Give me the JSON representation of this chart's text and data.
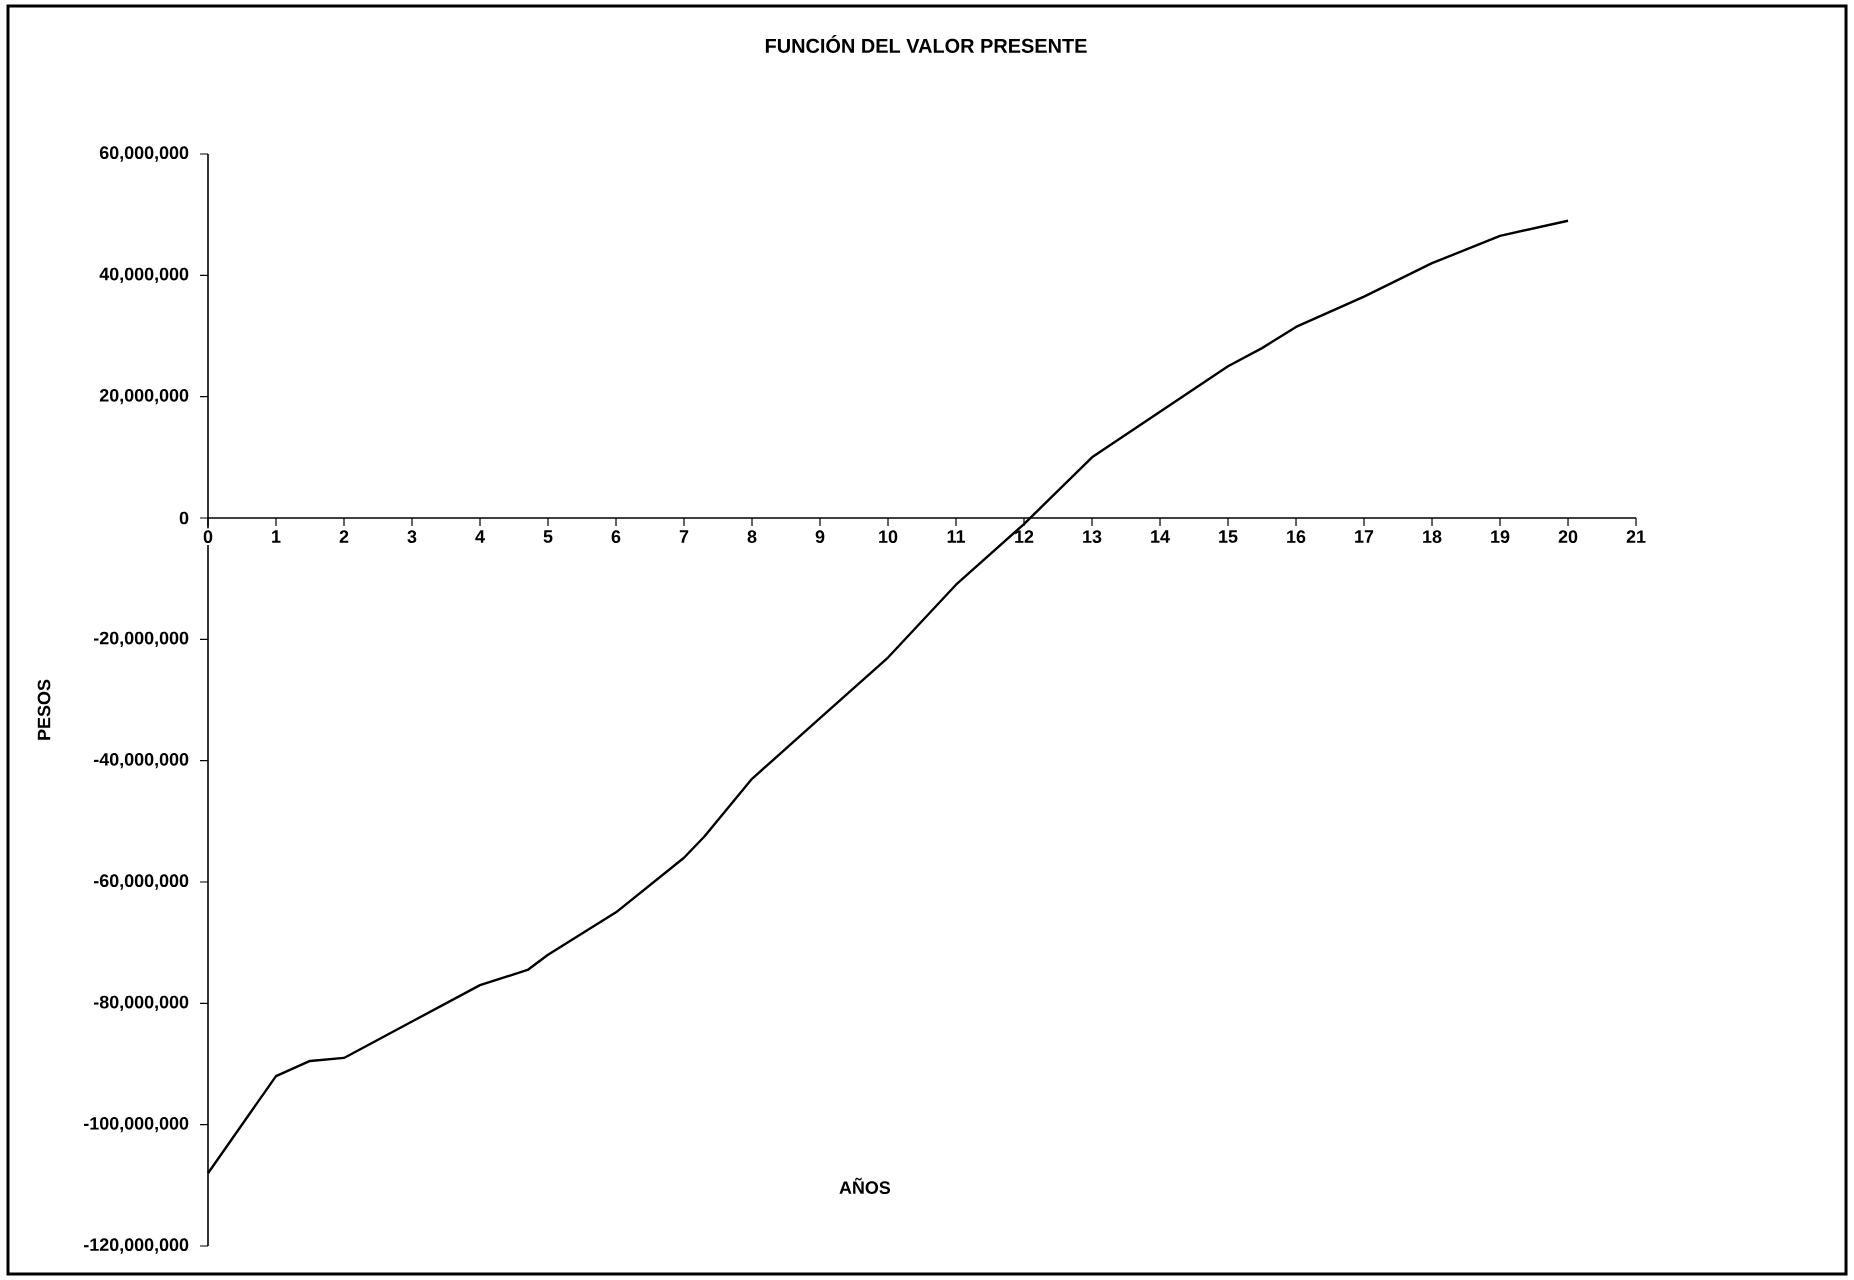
{
  "chart_data": {
    "type": "line",
    "title": "FUNCIÓN DEL VALOR PRESENTE",
    "xlabel": "AÑOS",
    "ylabel": "PESOS",
    "x": [
      0,
      1,
      1.5,
      2,
      3,
      4,
      4.7,
      5,
      6,
      7,
      7.3,
      8,
      9,
      10,
      11,
      12,
      13,
      14,
      15,
      15.5,
      16,
      17,
      18,
      19,
      20
    ],
    "series": [
      {
        "color": "#000000",
        "values": [
          -108000000,
          -92000000,
          -89500000,
          -89000000,
          -83000000,
          -77000000,
          -74500000,
          -72000000,
          -65000000,
          -56000000,
          -52500000,
          -43000000,
          -33000000,
          -23000000,
          -11000000,
          -1000000,
          10000000,
          17500000,
          25000000,
          28000000,
          31500000,
          36500000,
          42000000,
          46500000,
          49000000
        ]
      }
    ],
    "xlim": [
      0,
      21
    ],
    "xticks": [
      0,
      1,
      2,
      3,
      4,
      5,
      6,
      7,
      8,
      9,
      10,
      11,
      12,
      13,
      14,
      15,
      16,
      17,
      18,
      19,
      20,
      21
    ],
    "ylim": [
      -120000000,
      60000000
    ],
    "yticks": [
      {
        "value": -120000000,
        "label": "-120,000,000"
      },
      {
        "value": -100000000,
        "label": "-100,000,000"
      },
      {
        "value": -80000000,
        "label": "-80,000,000"
      },
      {
        "value": -60000000,
        "label": "-60,000,000"
      },
      {
        "value": -40000000,
        "label": "-40,000,000"
      },
      {
        "value": -20000000,
        "label": "-20,000,000"
      },
      {
        "value": 0,
        "label": "0"
      },
      {
        "value": 20000000,
        "label": "20,000,000"
      },
      {
        "value": 40000000,
        "label": "40,000,000"
      },
      {
        "value": 60000000,
        "label": "60,000,000"
      }
    ],
    "grid": false,
    "marker": "none",
    "line_style": "solid"
  }
}
